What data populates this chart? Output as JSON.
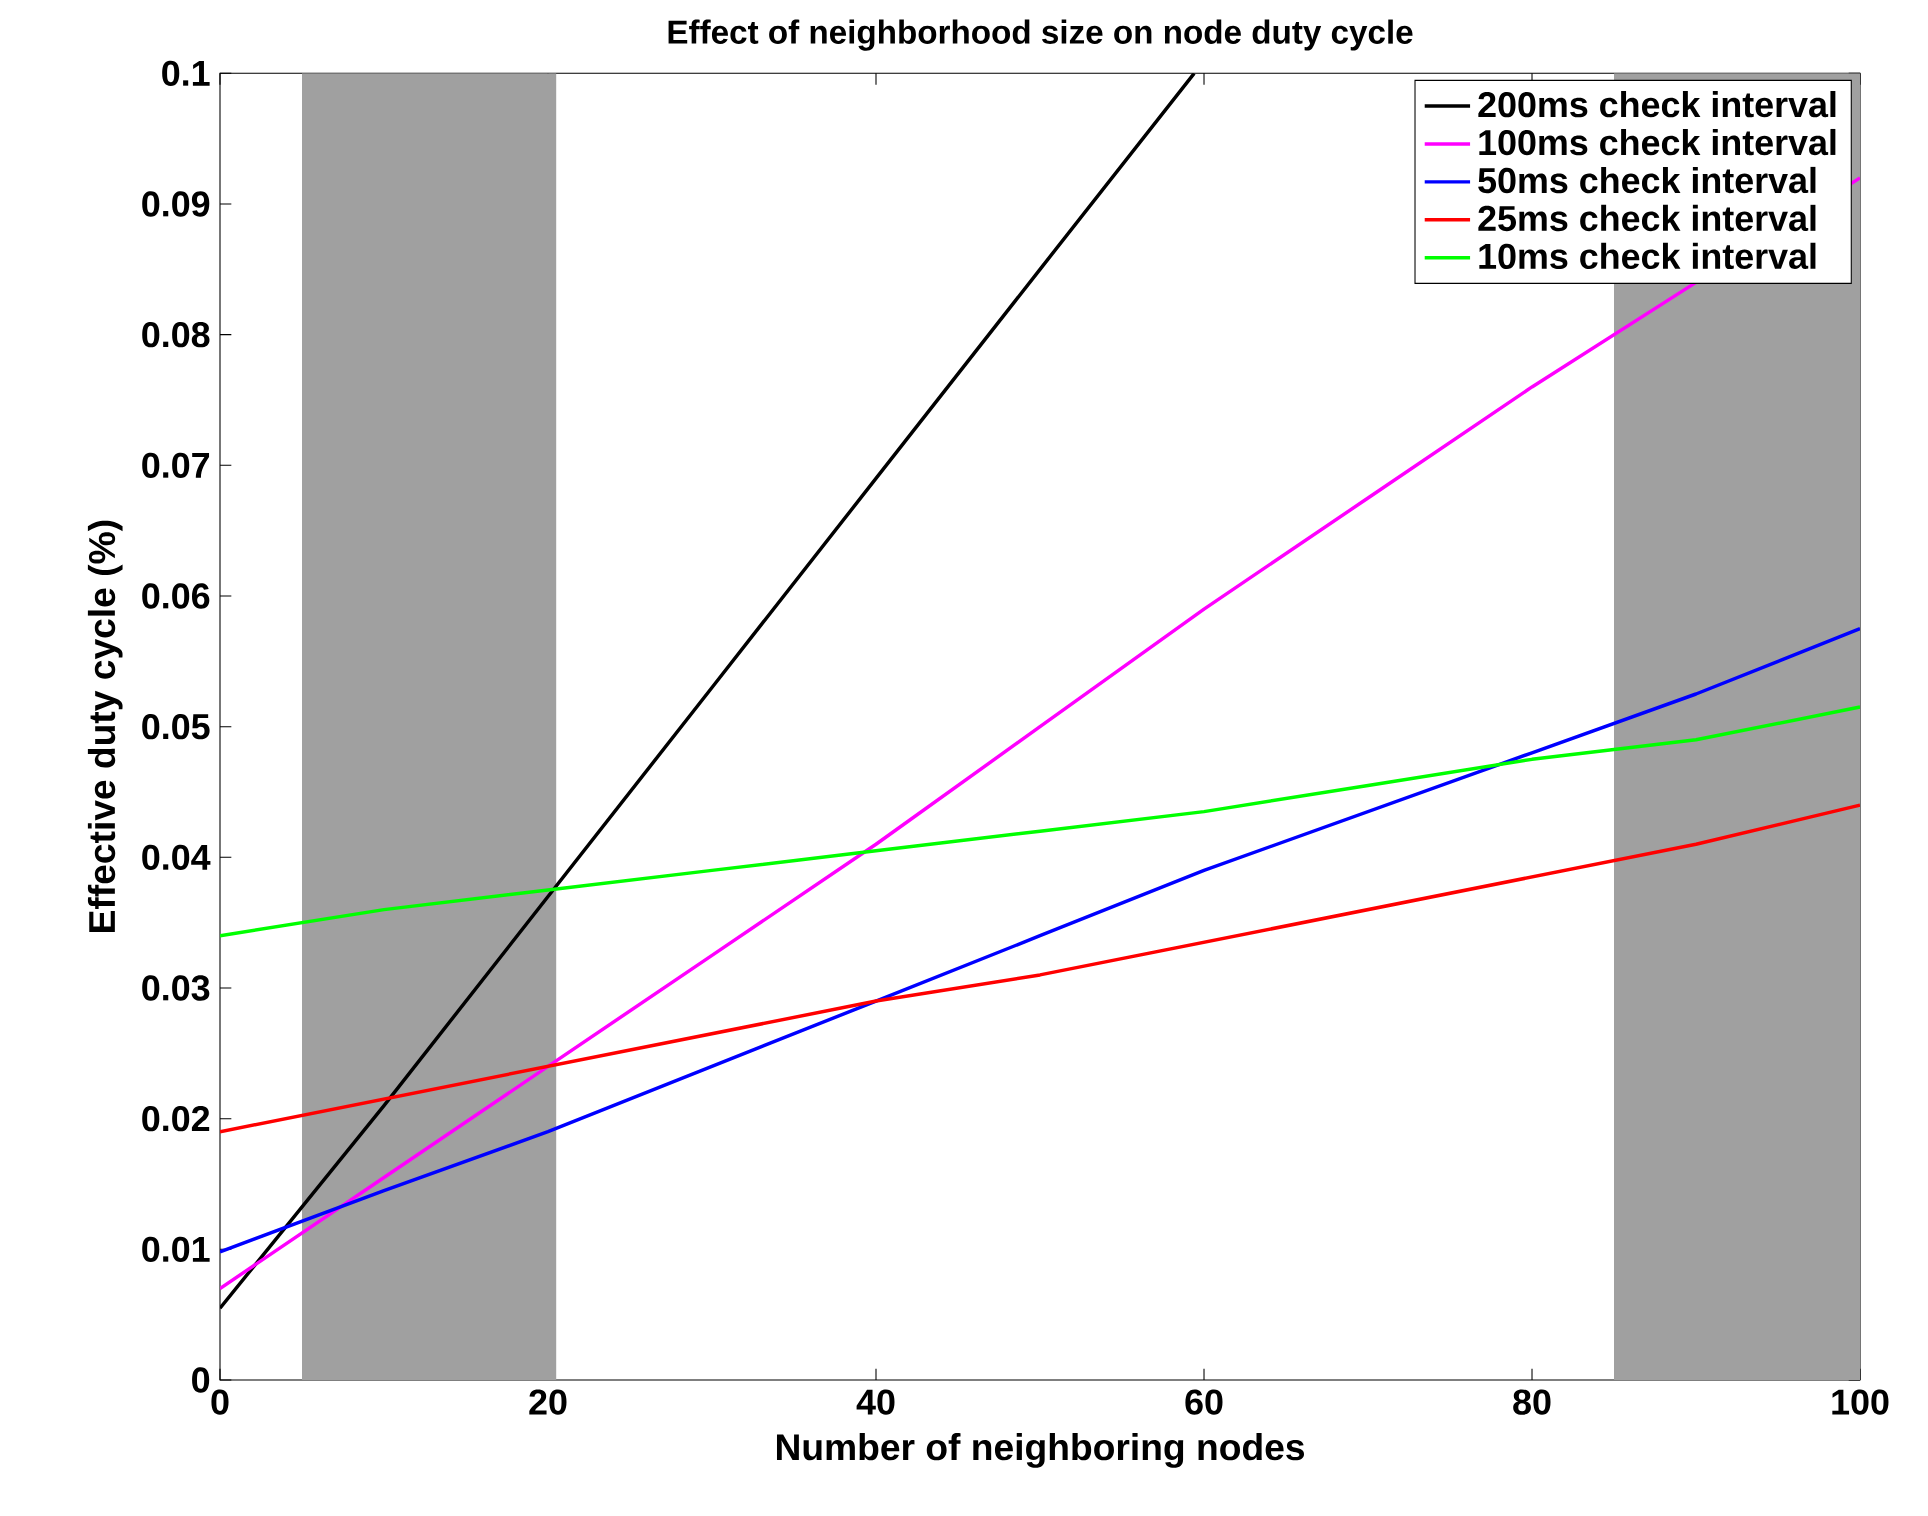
{
  "chart_data": {
    "type": "line",
    "title": "Effect of neighborhood size on node duty cycle",
    "xlabel": "Number of neighboring nodes",
    "ylabel": "Effective duty cycle (%)",
    "xlim": [
      0,
      100
    ],
    "ylim": [
      0,
      0.1
    ],
    "xticks": [
      0,
      20,
      40,
      60,
      80,
      100
    ],
    "yticks": [
      0,
      0.01,
      0.02,
      0.03,
      0.04,
      0.05,
      0.06,
      0.07,
      0.08,
      0.09,
      0.1
    ],
    "legend": "top right",
    "bands": [
      {
        "axis": "x",
        "from": 5,
        "to": 20.5,
        "color": "#a0a0a0"
      },
      {
        "axis": "x",
        "from": 85,
        "to": 100,
        "color": "#a0a0a0"
      }
    ],
    "series": [
      {
        "name": "200ms check interval",
        "color": "#000000",
        "x": [
          0,
          10,
          20,
          30,
          40,
          50,
          59.4
        ],
        "values": [
          0.0055,
          0.021,
          0.037,
          0.053,
          0.069,
          0.085,
          0.1
        ]
      },
      {
        "name": "100ms check interval",
        "color": "#ff00ff",
        "x": [
          0,
          10,
          20,
          30,
          40,
          50,
          60,
          70,
          80,
          90,
          100
        ],
        "values": [
          0.007,
          0.0155,
          0.024,
          0.0325,
          0.041,
          0.05,
          0.059,
          0.0675,
          0.076,
          0.084,
          0.092
        ]
      },
      {
        "name": "50ms check interval",
        "color": "#0000ff",
        "x": [
          0,
          10,
          20,
          30,
          40,
          50,
          60,
          70,
          80,
          90,
          100
        ],
        "values": [
          0.0098,
          0.0145,
          0.019,
          0.024,
          0.029,
          0.034,
          0.039,
          0.0435,
          0.048,
          0.0525,
          0.0575
        ]
      },
      {
        "name": "25ms check interval",
        "color": "#ff0000",
        "x": [
          0,
          10,
          20,
          30,
          40,
          50,
          60,
          70,
          80,
          90,
          100
        ],
        "values": [
          0.019,
          0.0215,
          0.024,
          0.0265,
          0.029,
          0.031,
          0.0335,
          0.036,
          0.0385,
          0.041,
          0.044
        ]
      },
      {
        "name": "10ms check interval",
        "color": "#00ff00",
        "x": [
          0,
          10,
          20,
          30,
          40,
          50,
          60,
          70,
          80,
          90,
          100
        ],
        "values": [
          0.034,
          0.036,
          0.0375,
          0.039,
          0.0405,
          0.042,
          0.0435,
          0.0455,
          0.0475,
          0.049,
          0.0515
        ]
      }
    ]
  }
}
